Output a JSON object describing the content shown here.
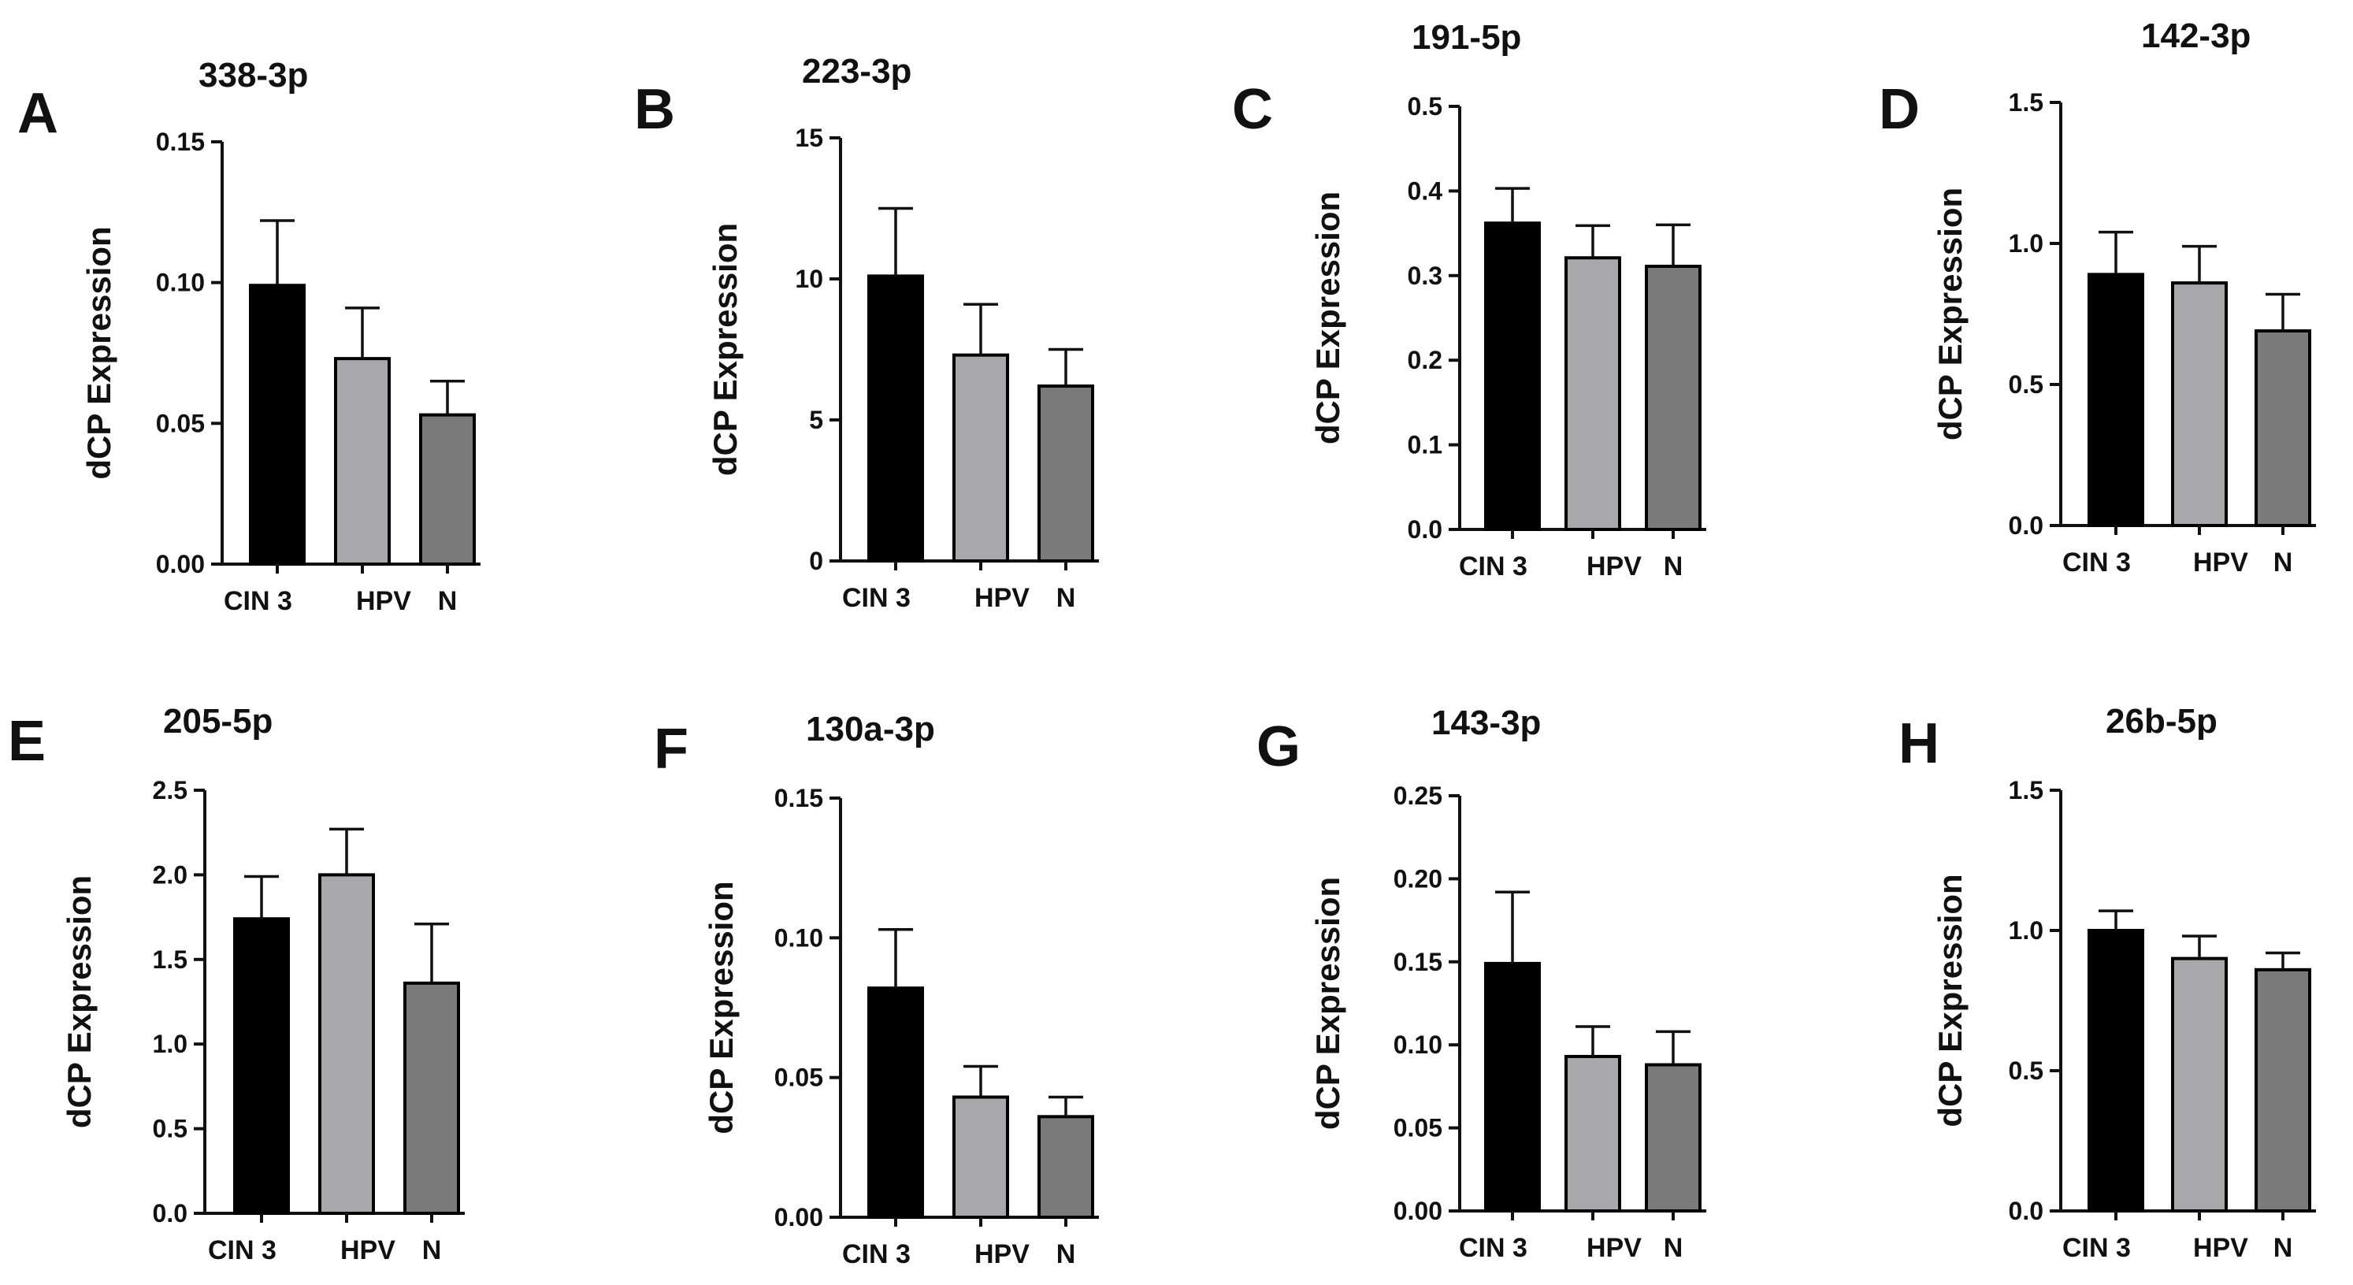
{
  "colors": {
    "series": [
      "#000000",
      "#a8a8aa",
      "#7a7a7a"
    ],
    "axis": "#111111"
  },
  "ylabel": "dCP Expression",
  "categories": [
    "CIN 3",
    "HPV",
    "N"
  ],
  "chart_data": [
    {
      "type": "bar",
      "panel": "A",
      "title": "338-3p",
      "categories": [
        "CIN 3",
        "HPV",
        "N"
      ],
      "values": [
        0.099,
        0.073,
        0.053
      ],
      "errors": [
        0.023,
        0.018,
        0.012
      ],
      "ylabel": "dCP Expression",
      "ylim": [
        0,
        0.15
      ],
      "yticks": [
        0,
        0.05,
        0.1,
        0.15
      ],
      "ytick_labels": [
        "0.00",
        "0.05",
        "0.10",
        "0.15"
      ]
    },
    {
      "type": "bar",
      "panel": "B",
      "title": "223-3p",
      "categories": [
        "CIN 3",
        "HPV",
        "N"
      ],
      "values": [
        10.1,
        7.3,
        6.2
      ],
      "errors": [
        2.4,
        1.8,
        1.3
      ],
      "ylabel": "dCP Expression",
      "ylim": [
        0,
        15
      ],
      "yticks": [
        0,
        5,
        10,
        15
      ],
      "ytick_labels": [
        "0",
        "5",
        "10",
        "15"
      ]
    },
    {
      "type": "bar",
      "panel": "C",
      "title": "191-5p",
      "categories": [
        "CIN 3",
        "HPV",
        "N"
      ],
      "values": [
        0.362,
        0.321,
        0.311
      ],
      "errors": [
        0.041,
        0.038,
        0.049
      ],
      "ylabel": "dCP Expression",
      "ylim": [
        0,
        0.5
      ],
      "yticks": [
        0,
        0.1,
        0.2,
        0.3,
        0.4,
        0.5
      ],
      "ytick_labels": [
        "0.0",
        "0.1",
        "0.2",
        "0.3",
        "0.4",
        "0.5"
      ]
    },
    {
      "type": "bar",
      "panel": "D",
      "title": "142-3p",
      "categories": [
        "CIN 3",
        "HPV",
        "N"
      ],
      "values": [
        0.89,
        0.86,
        0.69
      ],
      "errors": [
        0.15,
        0.13,
        0.13
      ],
      "ylabel": "dCP Expression",
      "ylim": [
        0,
        1.5
      ],
      "yticks": [
        0,
        0.5,
        1.0,
        1.5
      ],
      "ytick_labels": [
        "0.0",
        "0.5",
        "1.0",
        "1.5"
      ]
    },
    {
      "type": "bar",
      "panel": "E",
      "title": "205-5p",
      "categories": [
        "CIN 3",
        "HPV",
        "N"
      ],
      "values": [
        1.74,
        2.0,
        1.36
      ],
      "errors": [
        0.25,
        0.27,
        0.35
      ],
      "ylabel": "dCP Expression",
      "ylim": [
        0,
        2.5
      ],
      "yticks": [
        0,
        0.5,
        1.0,
        1.5,
        2.0,
        2.5
      ],
      "ytick_labels": [
        "0.0",
        "0.5",
        "1.0",
        "1.5",
        "2.0",
        "2.5"
      ]
    },
    {
      "type": "bar",
      "panel": "F",
      "title": "130a-3p",
      "categories": [
        "CIN 3",
        "HPV",
        "N"
      ],
      "values": [
        0.082,
        0.043,
        0.036
      ],
      "errors": [
        0.021,
        0.011,
        0.007
      ],
      "ylabel": "dCP Expression",
      "ylim": [
        0,
        0.15
      ],
      "yticks": [
        0,
        0.05,
        0.1,
        0.15
      ],
      "ytick_labels": [
        "0.00",
        "0.05",
        "0.10",
        "0.15"
      ]
    },
    {
      "type": "bar",
      "panel": "G",
      "title": "143-3p",
      "categories": [
        "CIN 3",
        "HPV",
        "N"
      ],
      "values": [
        0.149,
        0.093,
        0.088
      ],
      "errors": [
        0.043,
        0.018,
        0.02
      ],
      "ylabel": "dCP Expression",
      "ylim": [
        0,
        0.25
      ],
      "yticks": [
        0,
        0.05,
        0.1,
        0.15,
        0.2,
        0.25
      ],
      "ytick_labels": [
        "0.00",
        "0.05",
        "0.10",
        "0.15",
        "0.20",
        "0.25"
      ]
    },
    {
      "type": "bar",
      "panel": "H",
      "title": "26b-5p",
      "categories": [
        "CIN 3",
        "HPV",
        "N"
      ],
      "values": [
        1.0,
        0.9,
        0.86
      ],
      "errors": [
        0.07,
        0.08,
        0.06
      ],
      "ylabel": "dCP Expression",
      "ylim": [
        0,
        1.5
      ],
      "yticks": [
        0,
        0.5,
        1.0,
        1.5
      ],
      "ytick_labels": [
        "0.0",
        "0.5",
        "1.0",
        "1.5"
      ]
    }
  ]
}
